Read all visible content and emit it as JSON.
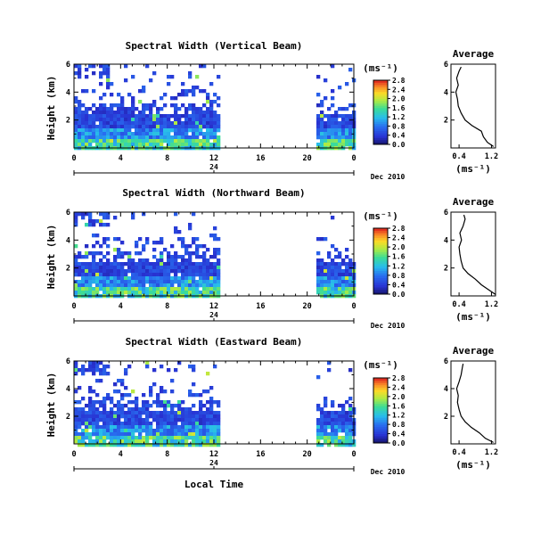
{
  "figure": {
    "x_axis_label": "Local Time",
    "date_label": "Dec 2010",
    "day_label": "24"
  },
  "chart_data": [
    {
      "type": "heatmap",
      "title": "Spectral Width (Vertical Beam)",
      "ylabel": "Height (km)",
      "xlabel": "Local Time",
      "x_ticks": [
        "0",
        "4",
        "8",
        "12",
        "16",
        "20",
        "0"
      ],
      "xlim_hours": [
        0,
        24
      ],
      "y_ticks": [
        "2",
        "4",
        "6"
      ],
      "ylim_km": [
        0,
        6
      ],
      "data_gaps_hours": [
        [
          12.5,
          20.5
        ]
      ],
      "colorbar": {
        "unit": "(ms⁻¹)",
        "ticks": [
          "0.0",
          "0.4",
          "0.8",
          "1.2",
          "1.6",
          "2.0",
          "2.4",
          "2.8"
        ],
        "range": [
          0,
          2.8
        ]
      },
      "average_profile": {
        "title": "Average",
        "xlabel": "(ms⁻¹)",
        "x_ticks": [
          "0.4",
          "1.2"
        ],
        "y_ticks": [
          "2",
          "4",
          "6"
        ],
        "height_km": [
          0.1,
          0.4,
          0.8,
          1.2,
          1.6,
          2.0,
          2.5,
          3.0,
          3.5,
          4.0,
          4.5,
          5.0,
          5.5,
          5.8
        ],
        "width_ms": [
          1.25,
          1.1,
          1.0,
          0.95,
          0.72,
          0.55,
          0.45,
          0.38,
          0.36,
          0.32,
          0.38,
          0.34,
          0.4,
          0.45
        ]
      }
    },
    {
      "type": "heatmap",
      "title": "Spectral Width (Northward Beam)",
      "ylabel": "Height (km)",
      "xlabel": "Local Time",
      "x_ticks": [
        "0",
        "4",
        "8",
        "12",
        "16",
        "20",
        "0"
      ],
      "xlim_hours": [
        0,
        24
      ],
      "y_ticks": [
        "2",
        "4",
        "6"
      ],
      "ylim_km": [
        0,
        6
      ],
      "data_gaps_hours": [
        [
          12.5,
          20.5
        ]
      ],
      "colorbar": {
        "unit": "(ms⁻¹)",
        "ticks": [
          "0.0",
          "0.4",
          "0.8",
          "1.2",
          "1.6",
          "2.0",
          "2.4",
          "2.8"
        ],
        "range": [
          0,
          2.8
        ]
      },
      "average_profile": {
        "title": "Average",
        "xlabel": "(ms⁻¹)",
        "x_ticks": [
          "0.4",
          "1.2"
        ],
        "y_ticks": [
          "2",
          "4",
          "6"
        ],
        "height_km": [
          0.1,
          0.4,
          0.8,
          1.2,
          1.6,
          2.0,
          2.5,
          3.0,
          3.5,
          4.0,
          4.5,
          5.0,
          5.5,
          5.8
        ],
        "width_ms": [
          1.3,
          1.15,
          0.95,
          0.8,
          0.62,
          0.5,
          0.45,
          0.42,
          0.4,
          0.46,
          0.42,
          0.5,
          0.55,
          0.52
        ]
      }
    },
    {
      "type": "heatmap",
      "title": "Spectral Width (Eastward Beam)",
      "ylabel": "Height (km)",
      "xlabel": "Local Time",
      "x_ticks": [
        "0",
        "4",
        "8",
        "12",
        "16",
        "20",
        "0"
      ],
      "xlim_hours": [
        0,
        24
      ],
      "y_ticks": [
        "2",
        "4",
        "6"
      ],
      "ylim_km": [
        0,
        6
      ],
      "data_gaps_hours": [
        [
          12.5,
          20.5
        ]
      ],
      "colorbar": {
        "unit": "(ms⁻¹)",
        "ticks": [
          "0.0",
          "0.4",
          "0.8",
          "1.2",
          "1.6",
          "2.0",
          "2.4",
          "2.8"
        ],
        "range": [
          0,
          2.8
        ]
      },
      "average_profile": {
        "title": "Average",
        "xlabel": "(ms⁻¹)",
        "x_ticks": [
          "0.4",
          "1.2"
        ],
        "y_ticks": [
          "2",
          "4",
          "6"
        ],
        "height_km": [
          0.1,
          0.4,
          0.8,
          1.2,
          1.6,
          2.0,
          2.5,
          3.0,
          3.5,
          4.0,
          4.5,
          5.0,
          5.5,
          5.8
        ],
        "width_ms": [
          1.25,
          1.05,
          0.9,
          0.7,
          0.55,
          0.45,
          0.4,
          0.36,
          0.38,
          0.34,
          0.4,
          0.45,
          0.48,
          0.5
        ]
      }
    }
  ]
}
